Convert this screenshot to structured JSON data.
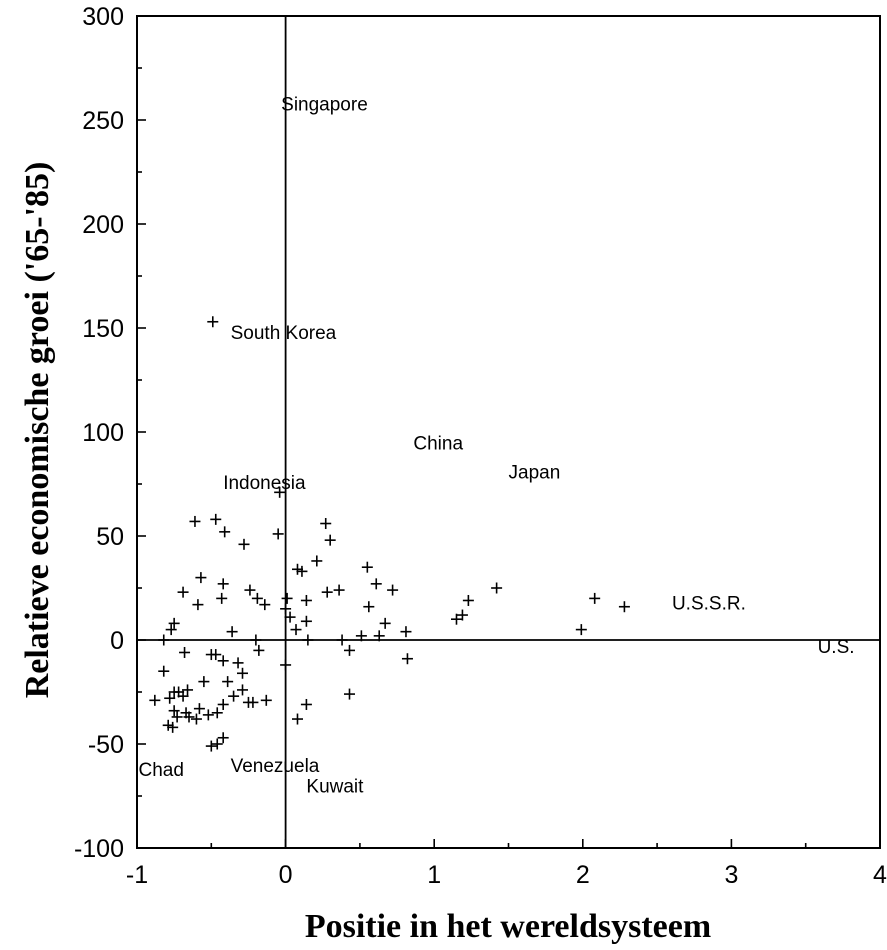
{
  "chart_data": {
    "type": "scatter",
    "title": "",
    "xlabel": "Positie in het wereldsysteem",
    "ylabel": "Relatieve economische groei ('65-'85)",
    "xlim": [
      -1,
      4
    ],
    "ylim": [
      -100,
      300
    ],
    "x_ticks": [
      "-1",
      "0",
      "1",
      "2",
      "3",
      "4"
    ],
    "y_ticks": [
      "300",
      "250",
      "200",
      "150",
      "100",
      "50",
      "0",
      "-50",
      "-100"
    ],
    "grid": false,
    "marker": "+",
    "annotations": [
      {
        "text": "Singapore",
        "x": -0.03,
        "y": 258
      },
      {
        "text": "South Korea",
        "x": -0.37,
        "y": 148
      },
      {
        "text": "China",
        "x": 0.86,
        "y": 95
      },
      {
        "text": "Japan",
        "x": 1.5,
        "y": 81
      },
      {
        "text": "Indonesia",
        "x": -0.42,
        "y": 76
      },
      {
        "text": "U.S.S.R.",
        "x": 2.6,
        "y": 18
      },
      {
        "text": "U.S.",
        "x": 3.58,
        "y": -3
      },
      {
        "text": "Chad",
        "x": -0.99,
        "y": -62
      },
      {
        "text": "Venezuela",
        "x": -0.37,
        "y": -60
      },
      {
        "text": "Kuwait",
        "x": 0.14,
        "y": -70
      }
    ],
    "points": [
      [
        -0.49,
        153
      ],
      [
        -0.04,
        71
      ],
      [
        -0.05,
        51
      ],
      [
        -0.61,
        57
      ],
      [
        -0.47,
        58
      ],
      [
        -0.41,
        52
      ],
      [
        -0.28,
        46
      ],
      [
        -0.69,
        23
      ],
      [
        -0.57,
        30
      ],
      [
        -0.59,
        17
      ],
      [
        -0.42,
        27
      ],
      [
        -0.43,
        20
      ],
      [
        -0.24,
        24
      ],
      [
        -0.19,
        20
      ],
      [
        -0.14,
        17
      ],
      [
        -0.36,
        4
      ],
      [
        -0.2,
        0
      ],
      [
        -0.18,
        -5
      ],
      [
        -0.77,
        5
      ],
      [
        -0.75,
        8
      ],
      [
        -0.82,
        0
      ],
      [
        -0.68,
        -6
      ],
      [
        -0.82,
        -15
      ],
      [
        -0.55,
        -20
      ],
      [
        -0.5,
        -7
      ],
      [
        -0.47,
        -7
      ],
      [
        -0.42,
        -10
      ],
      [
        -0.32,
        -11
      ],
      [
        -0.29,
        -16
      ],
      [
        -0.39,
        -20
      ],
      [
        -0.35,
        -27
      ],
      [
        -0.29,
        -24
      ],
      [
        -0.25,
        -30
      ],
      [
        -0.22,
        -30
      ],
      [
        -0.13,
        -29
      ],
      [
        -0.42,
        -31
      ],
      [
        -0.58,
        -33
      ],
      [
        -0.6,
        -38
      ],
      [
        -0.52,
        -36
      ],
      [
        -0.46,
        -35
      ],
      [
        -0.42,
        -47
      ],
      [
        -0.46,
        -50
      ],
      [
        -0.5,
        -51
      ],
      [
        -0.66,
        -24
      ],
      [
        -0.69,
        -27
      ],
      [
        -0.72,
        -25
      ],
      [
        -0.75,
        -25
      ],
      [
        -0.78,
        -28
      ],
      [
        -0.75,
        -34
      ],
      [
        -0.73,
        -37
      ],
      [
        -0.67,
        -35
      ],
      [
        -0.65,
        -37
      ],
      [
        -0.79,
        -41
      ],
      [
        -0.76,
        -42
      ],
      [
        -0.88,
        -29
      ],
      [
        0.01,
        20
      ],
      [
        0.0,
        15
      ],
      [
        0.03,
        11
      ],
      [
        0.08,
        34
      ],
      [
        0.11,
        33
      ],
      [
        0.14,
        19
      ],
      [
        0.14,
        9
      ],
      [
        0.21,
        38
      ],
      [
        0.27,
        56
      ],
      [
        0.3,
        48
      ],
      [
        0.28,
        23
      ],
      [
        0.36,
        24
      ],
      [
        0.38,
        0
      ],
      [
        0.43,
        -5
      ],
      [
        0.51,
        2
      ],
      [
        0.56,
        16
      ],
      [
        0.55,
        35
      ],
      [
        0.61,
        27
      ],
      [
        0.63,
        2
      ],
      [
        0.67,
        8
      ],
      [
        0.72,
        24
      ],
      [
        0.81,
        4
      ],
      [
        0.82,
        -9
      ],
      [
        0.15,
        0
      ],
      [
        0.0,
        -12
      ],
      [
        0.07,
        5
      ],
      [
        0.08,
        -38
      ],
      [
        0.14,
        -31
      ],
      [
        0.43,
        -26
      ],
      [
        1.15,
        10
      ],
      [
        1.19,
        12
      ],
      [
        1.23,
        19
      ],
      [
        1.42,
        25
      ],
      [
        1.99,
        5
      ],
      [
        2.08,
        20
      ],
      [
        2.28,
        16
      ]
    ]
  }
}
